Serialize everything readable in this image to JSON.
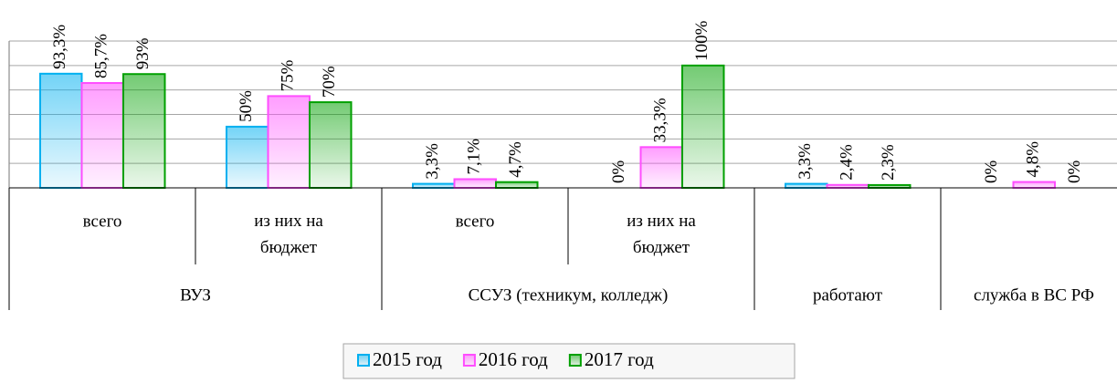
{
  "chart_data": {
    "type": "bar",
    "categories": [
      "всего",
      "из них на бюджет",
      "всего",
      "из них на бюджет",
      null,
      null
    ],
    "group_categories": [
      "ВУЗ",
      "ВУЗ",
      "ССУЗ (техникум, колледж)",
      "ССУЗ (техникум, колледж)",
      "работают",
      "служба в ВС РФ"
    ],
    "series": [
      {
        "name": "2015 год",
        "color": "#00b0f0",
        "values": [
          93.3,
          50,
          3.3,
          0,
          3.3,
          0
        ],
        "value_labels": [
          "93,3%",
          "50%",
          "3,3%",
          "0%",
          "3,3%",
          "0%"
        ]
      },
      {
        "name": "2016 год",
        "color": "#ff4dff",
        "values": [
          85.7,
          75,
          7.1,
          33.3,
          2.4,
          4.8
        ],
        "value_labels": [
          "85,7%",
          "75%",
          "7,1%",
          "33,3%",
          "2,4%",
          "4,8%"
        ]
      },
      {
        "name": "2017 год",
        "color": "#00a000",
        "values": [
          93,
          70,
          4.7,
          100,
          2.3,
          0
        ],
        "value_labels": [
          "93%",
          "70%",
          "4,7%",
          "100%",
          "2,3%",
          "0%"
        ]
      }
    ],
    "ylim": [
      0,
      120
    ],
    "yticks": [
      0,
      20,
      40,
      60,
      80,
      100,
      120
    ],
    "grid": true,
    "legend": "bottom"
  }
}
